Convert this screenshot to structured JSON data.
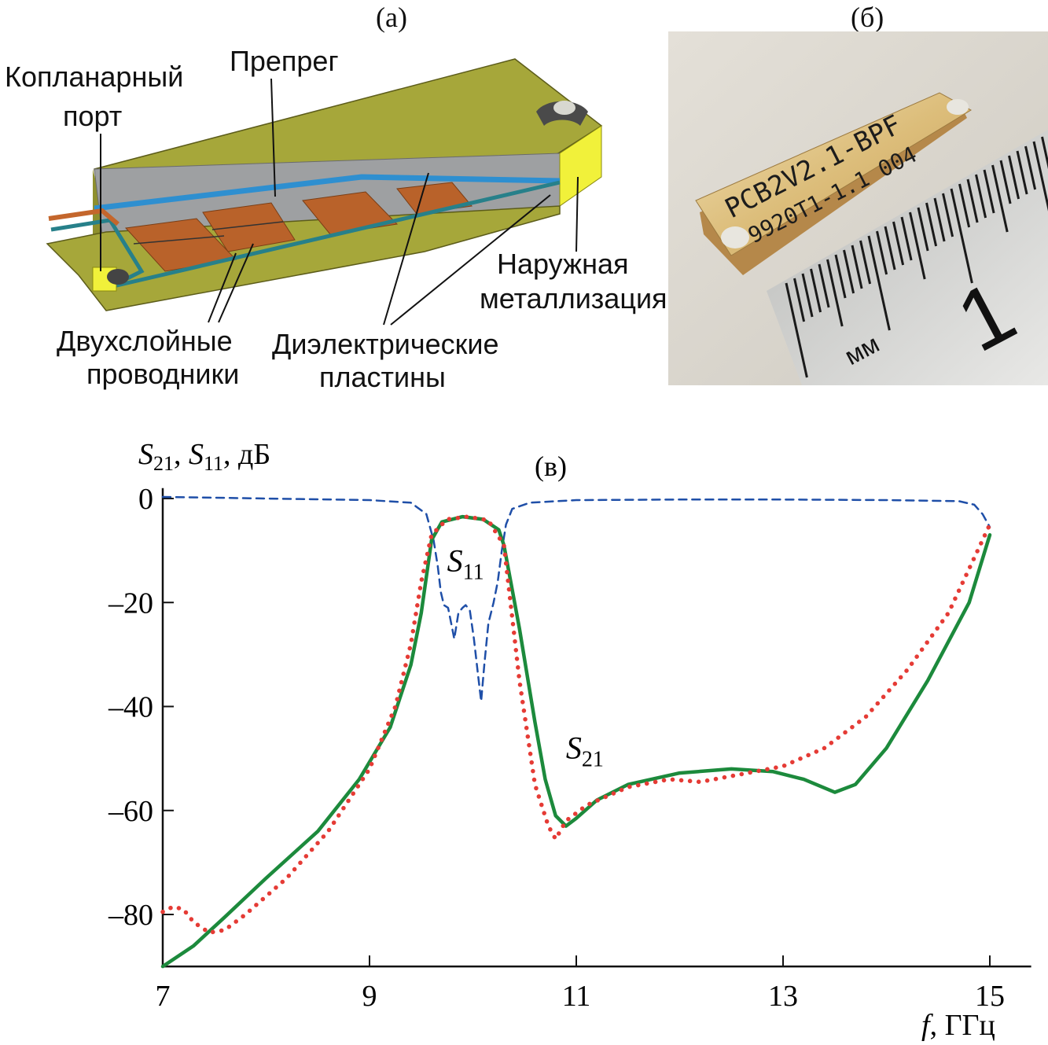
{
  "panels": {
    "a": "(а)",
    "b": "(б)",
    "c": "(в)"
  },
  "diagram_a": {
    "labels": {
      "coplanar_port": [
        "Копланарный",
        "порт"
      ],
      "prepreg": "Препрег",
      "outer_metallization": [
        "Наружная",
        "металлизация"
      ],
      "two_layer_conductors": [
        "Двухслойные",
        "проводники"
      ],
      "dielectric_plates": [
        "Диэлектрические",
        "пластины"
      ]
    },
    "colors": {
      "body": "#a6a73a",
      "dielectric": "#9ea0a2",
      "copper": "#b9622a",
      "prepreg_blue": "#2e8fd0",
      "trace": "#27808a",
      "end_cap": "#f1f13a"
    }
  },
  "photo_b": {
    "chip_line1": "PCB2V2.1-BPF",
    "chip_line2": "9920T1-1.1 004",
    "ruler_unit": "мм",
    "ruler_number": "1"
  },
  "chart_data": {
    "type": "line",
    "ylabel": {
      "s1": "S",
      "s1_sub": "21",
      "sep1": ", ",
      "s2": "S",
      "s2_sub": "11",
      "unit": ",  дБ"
    },
    "xlabel": {
      "var": "f",
      "unit": ", ГГц"
    },
    "xlim": [
      7,
      15.4
    ],
    "ylim": [
      -90,
      2
    ],
    "xticks": [
      7,
      9,
      11,
      13,
      15
    ],
    "yticks": [
      0,
      -20,
      -40,
      -60,
      -80
    ],
    "ytick_labels": [
      "0",
      "–20",
      "–40",
      "–60",
      "–80"
    ],
    "annotations": [
      {
        "text": "S",
        "sub": "11",
        "x": 9.75,
        "y": -14
      },
      {
        "text": "S",
        "sub": "21",
        "x": 10.9,
        "y": -50
      }
    ],
    "series": [
      {
        "id": "s11",
        "style": "dashed",
        "color": "#1f4fa8",
        "points": [
          [
            7,
            0.3
          ],
          [
            8,
            0
          ],
          [
            9,
            -0.3
          ],
          [
            9.4,
            -0.8
          ],
          [
            9.55,
            -3
          ],
          [
            9.62,
            -8
          ],
          [
            9.66,
            -13
          ],
          [
            9.69,
            -18
          ],
          [
            9.72,
            -20.5
          ],
          [
            9.76,
            -21
          ],
          [
            9.79,
            -24
          ],
          [
            9.82,
            -27
          ],
          [
            9.86,
            -22
          ],
          [
            9.9,
            -21
          ],
          [
            9.93,
            -20.5
          ],
          [
            9.97,
            -21.5
          ],
          [
            10.01,
            -27
          ],
          [
            10.05,
            -34
          ],
          [
            10.08,
            -39
          ],
          [
            10.11,
            -32
          ],
          [
            10.15,
            -24
          ],
          [
            10.2,
            -20
          ],
          [
            10.24,
            -16
          ],
          [
            10.28,
            -10
          ],
          [
            10.32,
            -5
          ],
          [
            10.38,
            -2
          ],
          [
            10.55,
            -0.8
          ],
          [
            11,
            -0.3
          ],
          [
            12,
            -0.2
          ],
          [
            13,
            -0.2
          ],
          [
            14,
            -0.3
          ],
          [
            14.7,
            -0.5
          ],
          [
            14.85,
            -1.2
          ],
          [
            14.93,
            -3
          ],
          [
            15,
            -5.5
          ]
        ]
      },
      {
        "id": "s21_sim",
        "style": "solid",
        "color": "#1c8a3c",
        "points": [
          [
            7,
            -90
          ],
          [
            7.3,
            -86
          ],
          [
            7.6,
            -80.5
          ],
          [
            8,
            -73
          ],
          [
            8.5,
            -64
          ],
          [
            8.9,
            -54
          ],
          [
            9.2,
            -44
          ],
          [
            9.4,
            -32
          ],
          [
            9.5,
            -22
          ],
          [
            9.6,
            -8
          ],
          [
            9.7,
            -4.5
          ],
          [
            9.9,
            -3.5
          ],
          [
            10.1,
            -4
          ],
          [
            10.25,
            -6
          ],
          [
            10.3,
            -9
          ],
          [
            10.45,
            -25
          ],
          [
            10.6,
            -43
          ],
          [
            10.7,
            -54
          ],
          [
            10.8,
            -61
          ],
          [
            10.9,
            -63
          ],
          [
            11,
            -61.5
          ],
          [
            11.2,
            -58
          ],
          [
            11.5,
            -55
          ],
          [
            12,
            -52.8
          ],
          [
            12.5,
            -52
          ],
          [
            12.9,
            -52.5
          ],
          [
            13.2,
            -54
          ],
          [
            13.5,
            -56.5
          ],
          [
            13.7,
            -55
          ],
          [
            14,
            -48
          ],
          [
            14.4,
            -35
          ],
          [
            14.8,
            -20
          ],
          [
            15,
            -7
          ]
        ]
      },
      {
        "id": "s21_meas",
        "style": "dotted",
        "color": "#e53b35",
        "points": [
          [
            7,
            -79.5
          ],
          [
            7.1,
            -78.5
          ],
          [
            7.2,
            -79
          ],
          [
            7.3,
            -81.5
          ],
          [
            7.45,
            -83.5
          ],
          [
            7.6,
            -83
          ],
          [
            7.8,
            -80
          ],
          [
            8.2,
            -73
          ],
          [
            8.6,
            -64
          ],
          [
            9,
            -52
          ],
          [
            9.25,
            -40
          ],
          [
            9.4,
            -28
          ],
          [
            9.5,
            -16
          ],
          [
            9.6,
            -7
          ],
          [
            9.75,
            -4
          ],
          [
            9.95,
            -3.5
          ],
          [
            10.15,
            -4.2
          ],
          [
            10.3,
            -9
          ],
          [
            10.45,
            -35
          ],
          [
            10.6,
            -55
          ],
          [
            10.73,
            -63
          ],
          [
            10.8,
            -65.5
          ],
          [
            10.9,
            -62
          ],
          [
            11.1,
            -59
          ],
          [
            11.5,
            -55.5
          ],
          [
            11.9,
            -54
          ],
          [
            12.2,
            -54.5
          ],
          [
            12.6,
            -53
          ],
          [
            13,
            -51.5
          ],
          [
            13.4,
            -48
          ],
          [
            13.8,
            -42
          ],
          [
            14.2,
            -33
          ],
          [
            14.6,
            -22
          ],
          [
            15,
            -5
          ]
        ]
      }
    ]
  }
}
